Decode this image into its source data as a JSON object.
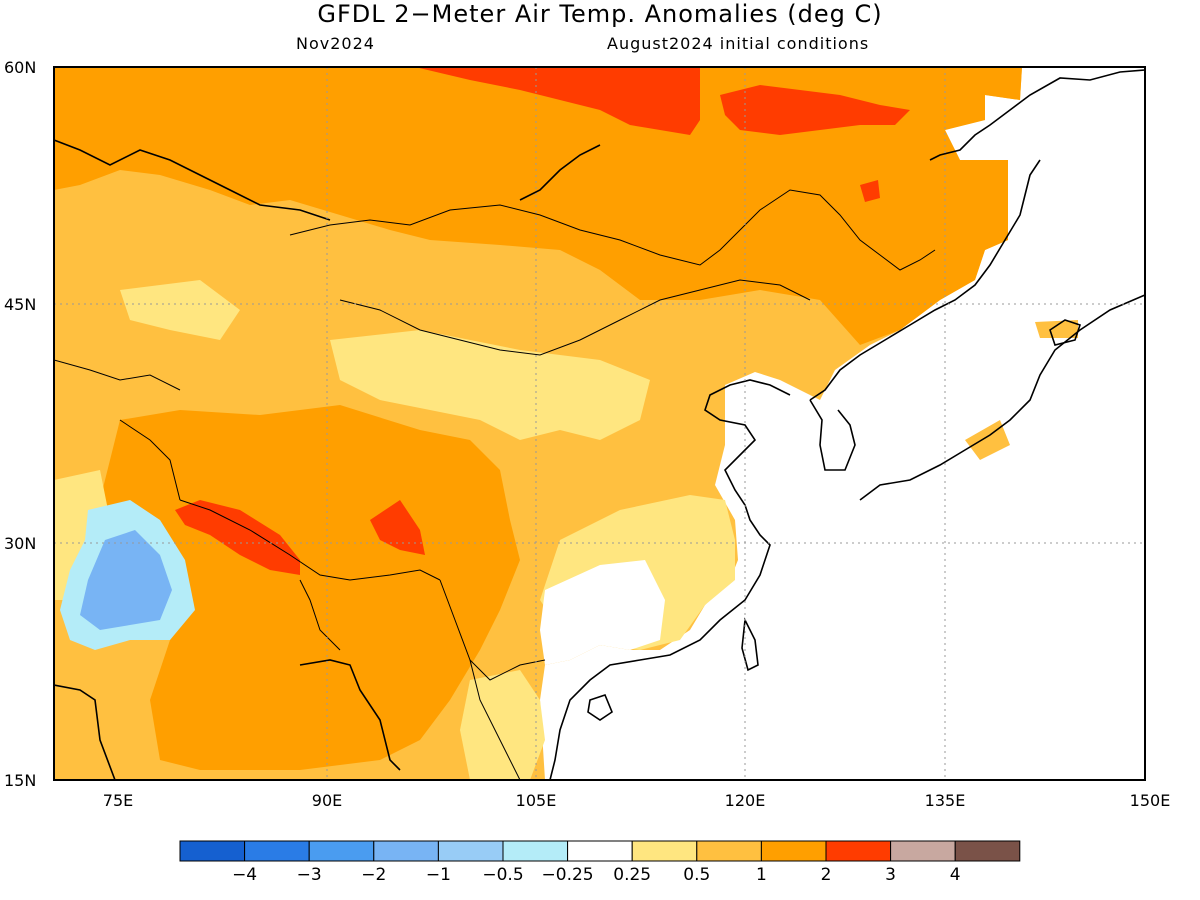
{
  "title": "GFDL 2−Meter Air Temp. Anomalies (deg C)",
  "subtitle_left": "Nov2024",
  "subtitle_right": "August2024 initial conditions",
  "lon_ticks": [
    "75E",
    "90E",
    "105E",
    "120E",
    "135E",
    "150E"
  ],
  "lat_ticks": [
    "60N",
    "45N",
    "30N",
    "15N"
  ],
  "colorbar": {
    "colors": [
      "#1560d0",
      "#2a7ce6",
      "#4a9cf0",
      "#78b4f4",
      "#98ccf6",
      "#b4ecf8",
      "#ffffff",
      "#ffe680",
      "#ffc040",
      "#ff9f00",
      "#ff3c00",
      "#c8a8a0",
      "#7a5248"
    ],
    "labels": [
      "−4",
      "−3",
      "−2",
      "−1",
      "−0.5",
      "−0.25",
      "0.25",
      "0.5",
      "1",
      "2",
      "3",
      "4"
    ]
  },
  "map_extent": {
    "lon": [
      70,
      150
    ],
    "lat": [
      15,
      60
    ]
  }
}
